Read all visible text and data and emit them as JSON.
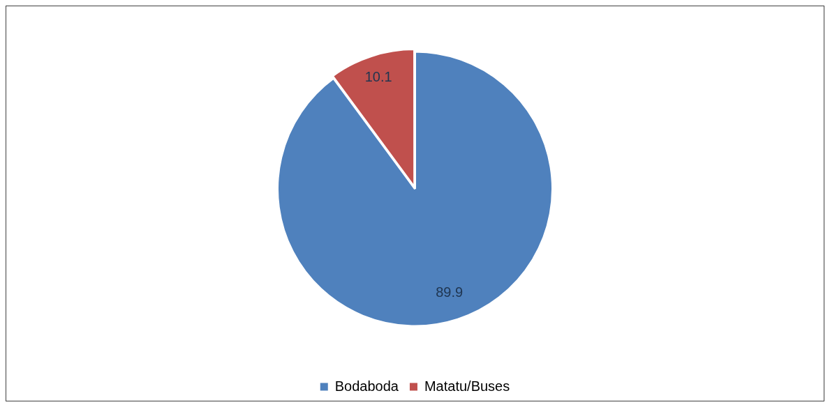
{
  "chart_data": {
    "type": "pie",
    "categories": [
      "Bodaboda",
      "Matatu/Buses"
    ],
    "values": [
      89.9,
      10.1
    ],
    "colors": [
      "#4f81bd",
      "#c0504d"
    ],
    "data_labels": true,
    "legend": "bottom"
  }
}
